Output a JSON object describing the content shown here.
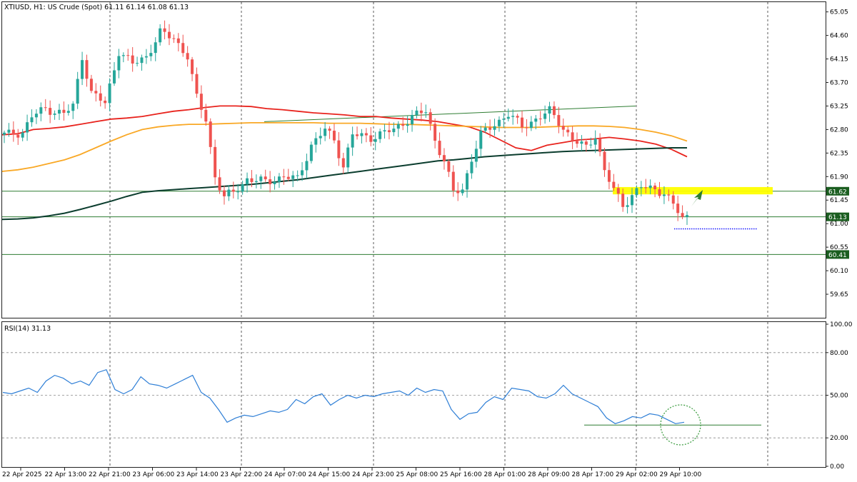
{
  "header": {
    "title": "XTIUSD, H1:  US Crude (Spot)  61.11 61.14 61.08 61.13"
  },
  "rsi_panel": {
    "title": "RSI(14) 31.13"
  },
  "colors": {
    "bull": "#26a69a",
    "bear": "#ef5350",
    "ma_fast": "#e8231d",
    "ma_mid": "#f9a825",
    "ma_slow": "#0b3d2e",
    "rsi": "#2f7fd6",
    "zone": "#ffff00",
    "level_line": "#2e7d32",
    "badge_bg": "#1b5e20"
  },
  "chart_data": [
    {
      "type": "candlestick",
      "symbol": "XTIUSD",
      "timeframe": "H1",
      "ylim": [
        59.2,
        65.25
      ],
      "y_ticks": [
        "65.05",
        "64.60",
        "64.15",
        "63.70",
        "63.25",
        "62.80",
        "62.35",
        "61.90",
        "61.45",
        "61.00",
        "60.55",
        "60.10",
        "59.65"
      ],
      "x_ticks": [
        "22 Apr 2025",
        "22 Apr 13:00",
        "22 Apr 21:00",
        "23 Apr 06:00",
        "23 Apr 14:00",
        "23 Apr 22:00",
        "24 Apr 07:00",
        "24 Apr 15:00",
        "24 Apr 23:00",
        "25 Apr 08:00",
        "25 Apr 16:00",
        "28 Apr 01:00",
        "28 Apr 09:00",
        "28 Apr 17:00",
        "29 Apr 02:00",
        "29 Apr 10:00"
      ],
      "levels": [
        {
          "price": 61.62,
          "label": "61.62"
        },
        {
          "price": 61.13,
          "label": "61.13"
        },
        {
          "price": 60.41,
          "label": "60.41"
        }
      ],
      "resistance_zone": [
        61.56,
        61.7
      ],
      "target_price": 60.9,
      "trendline": [
        62.95,
        63.25
      ],
      "series": [
        {
          "name": "MA fast",
          "values": [
            62.7,
            62.72,
            62.8,
            62.82,
            62.85,
            62.9,
            62.95,
            63.0,
            63.02,
            63.05,
            63.1,
            63.15,
            63.18,
            63.22,
            63.25,
            63.25,
            63.24,
            63.2,
            63.18,
            63.15,
            63.12,
            63.1,
            63.08,
            63.05,
            63.05,
            63.02,
            63.0,
            62.98,
            62.95,
            62.9,
            62.85,
            62.75,
            62.6,
            62.45,
            62.4,
            62.5,
            62.55,
            62.6,
            62.62,
            62.65,
            62.62,
            62.58,
            62.52,
            62.42,
            62.28
          ]
        },
        {
          "name": "MA mid",
          "values": [
            62.0,
            62.03,
            62.08,
            62.15,
            62.22,
            62.32,
            62.45,
            62.58,
            62.7,
            62.8,
            62.85,
            62.88,
            62.9,
            62.9,
            62.91,
            62.92,
            62.93,
            62.93,
            62.93,
            62.93,
            62.93,
            62.92,
            62.92,
            62.92,
            62.91,
            62.9,
            62.9,
            62.89,
            62.88,
            62.87,
            62.86,
            62.85,
            62.84,
            62.84,
            62.84,
            62.85,
            62.86,
            62.87,
            62.87,
            62.86,
            62.84,
            62.8,
            62.75,
            62.68,
            62.58
          ]
        },
        {
          "name": "MA slow",
          "values": [
            61.08,
            61.09,
            61.11,
            61.15,
            61.2,
            61.27,
            61.35,
            61.43,
            61.52,
            61.6,
            61.63,
            61.65,
            61.67,
            61.69,
            61.71,
            61.73,
            61.75,
            61.78,
            61.81,
            61.84,
            61.88,
            61.92,
            61.96,
            62.0,
            62.04,
            62.08,
            62.12,
            62.16,
            62.2,
            62.22,
            62.25,
            62.28,
            62.3,
            62.32,
            62.34,
            62.36,
            62.38,
            62.39,
            62.4,
            62.41,
            62.42,
            62.43,
            62.44,
            62.45,
            62.45
          ]
        }
      ]
    },
    {
      "type": "line",
      "name": "RSI(14)",
      "ylim": [
        0,
        100
      ],
      "y_ticks": [
        "100.00",
        "80.00",
        "50.00",
        "20.00",
        "0.00"
      ],
      "levels": [
        30
      ],
      "values": [
        52,
        51,
        53,
        55,
        52,
        60,
        64,
        62,
        58,
        60,
        57,
        66,
        68,
        54,
        51,
        54,
        63,
        58,
        57,
        55,
        58,
        61,
        64,
        52,
        48,
        40,
        31,
        34,
        36,
        35,
        37,
        39,
        38,
        40,
        47,
        44,
        49,
        51,
        43,
        47,
        50,
        48,
        50,
        49,
        51,
        52,
        53,
        50,
        55,
        52,
        54,
        53,
        40,
        33,
        37,
        38,
        45,
        49,
        47,
        55,
        54,
        53,
        49,
        48,
        51,
        57,
        51,
        48,
        45,
        42,
        34,
        30,
        32,
        35,
        34,
        37,
        36,
        33,
        30,
        31
      ]
    }
  ]
}
